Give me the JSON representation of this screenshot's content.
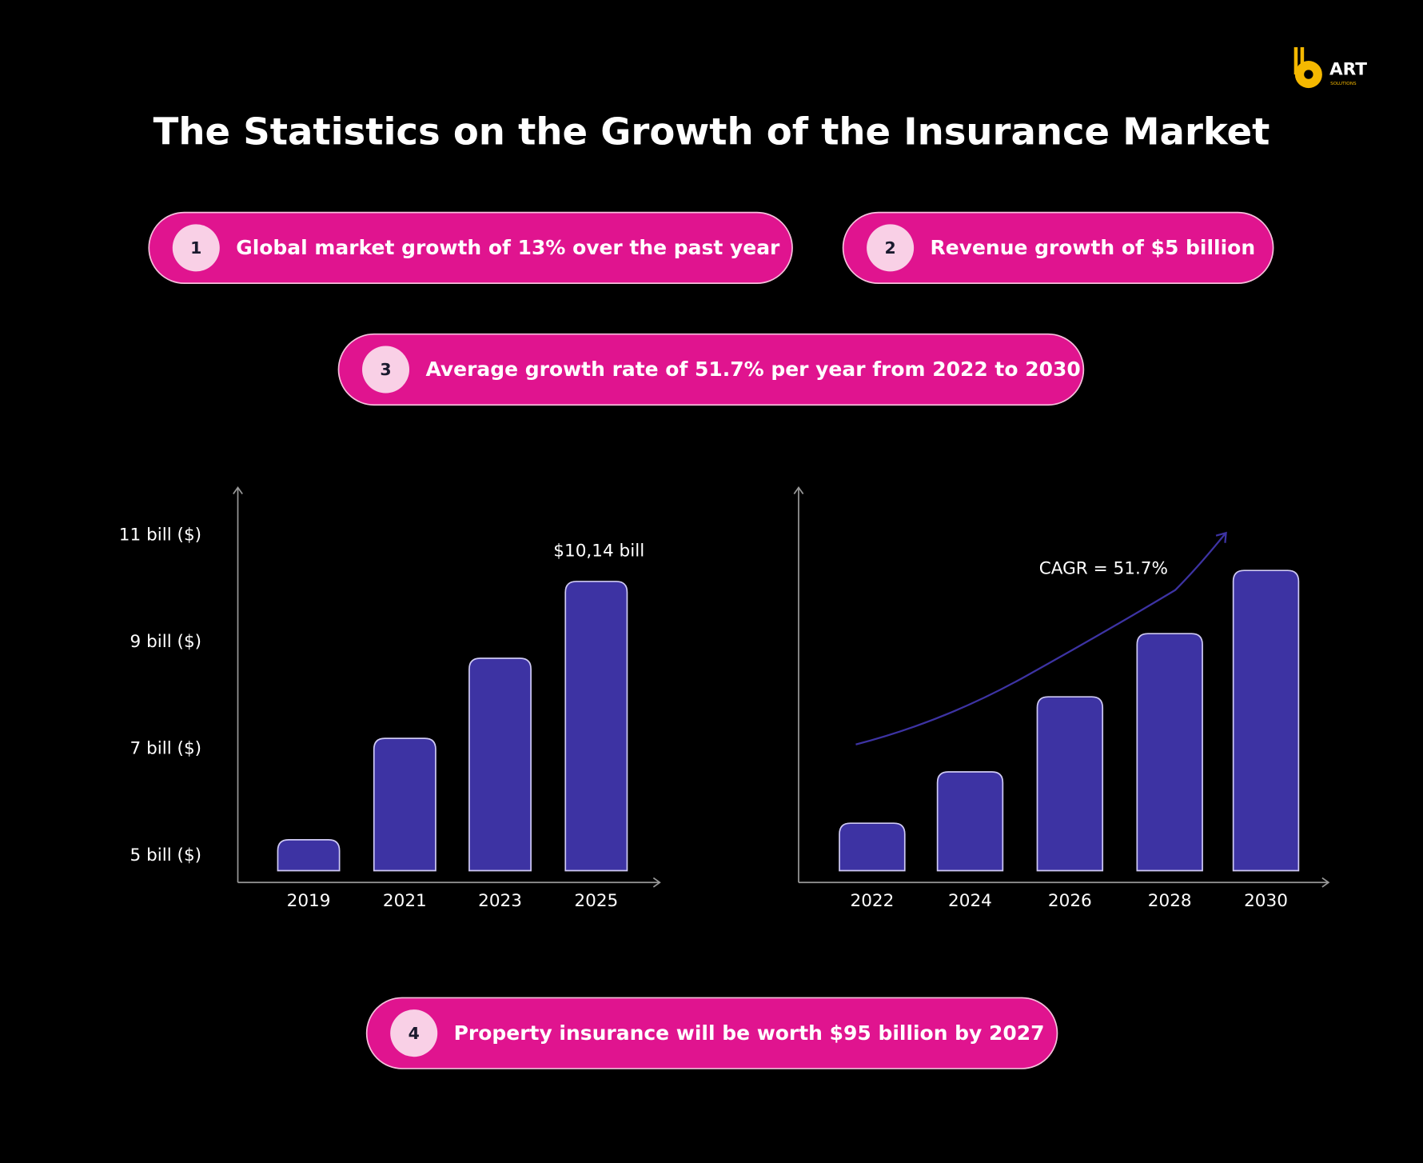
{
  "logo": {
    "name": "ART",
    "tagline": "SOLUTIONS"
  },
  "title": "The Statistics on the Growth of the Insurance Market",
  "pills": [
    {
      "number": "1",
      "text": "Global market growth of 13% over the past year"
    },
    {
      "number": "2",
      "text": "Revenue growth of $5 billion"
    },
    {
      "number": "3",
      "text": "Average growth rate of 51.7% per year from 2022 to 2030"
    },
    {
      "number": "4",
      "text": "Property insurance will be worth $95 billion by 2027"
    }
  ],
  "chart_data": [
    {
      "type": "bar",
      "categories": [
        "2019",
        "2021",
        "2023",
        "2025"
      ],
      "values": [
        5.3,
        7.2,
        8.7,
        10.14
      ],
      "value_labels": [
        null,
        null,
        null,
        "$10,14 bill"
      ],
      "color": "#3d33a3",
      "ylim": [
        4.5,
        11.9
      ],
      "yticks": [
        {
          "value": 5,
          "label": "5 bill ($)"
        },
        {
          "value": 7,
          "label": "7 bill ($)"
        },
        {
          "value": 9,
          "label": "9 bill ($)"
        },
        {
          "value": 11,
          "label": "11 bill ($)"
        }
      ]
    },
    {
      "type": "bar",
      "categories": [
        "2022",
        "2024",
        "2026",
        "2028",
        "2030"
      ],
      "values": [
        15,
        28,
        47,
        63,
        79
      ],
      "color": "#3d33a3",
      "ylim": [
        0,
        100
      ],
      "annotation": "CAGR = 51.7%"
    }
  ]
}
